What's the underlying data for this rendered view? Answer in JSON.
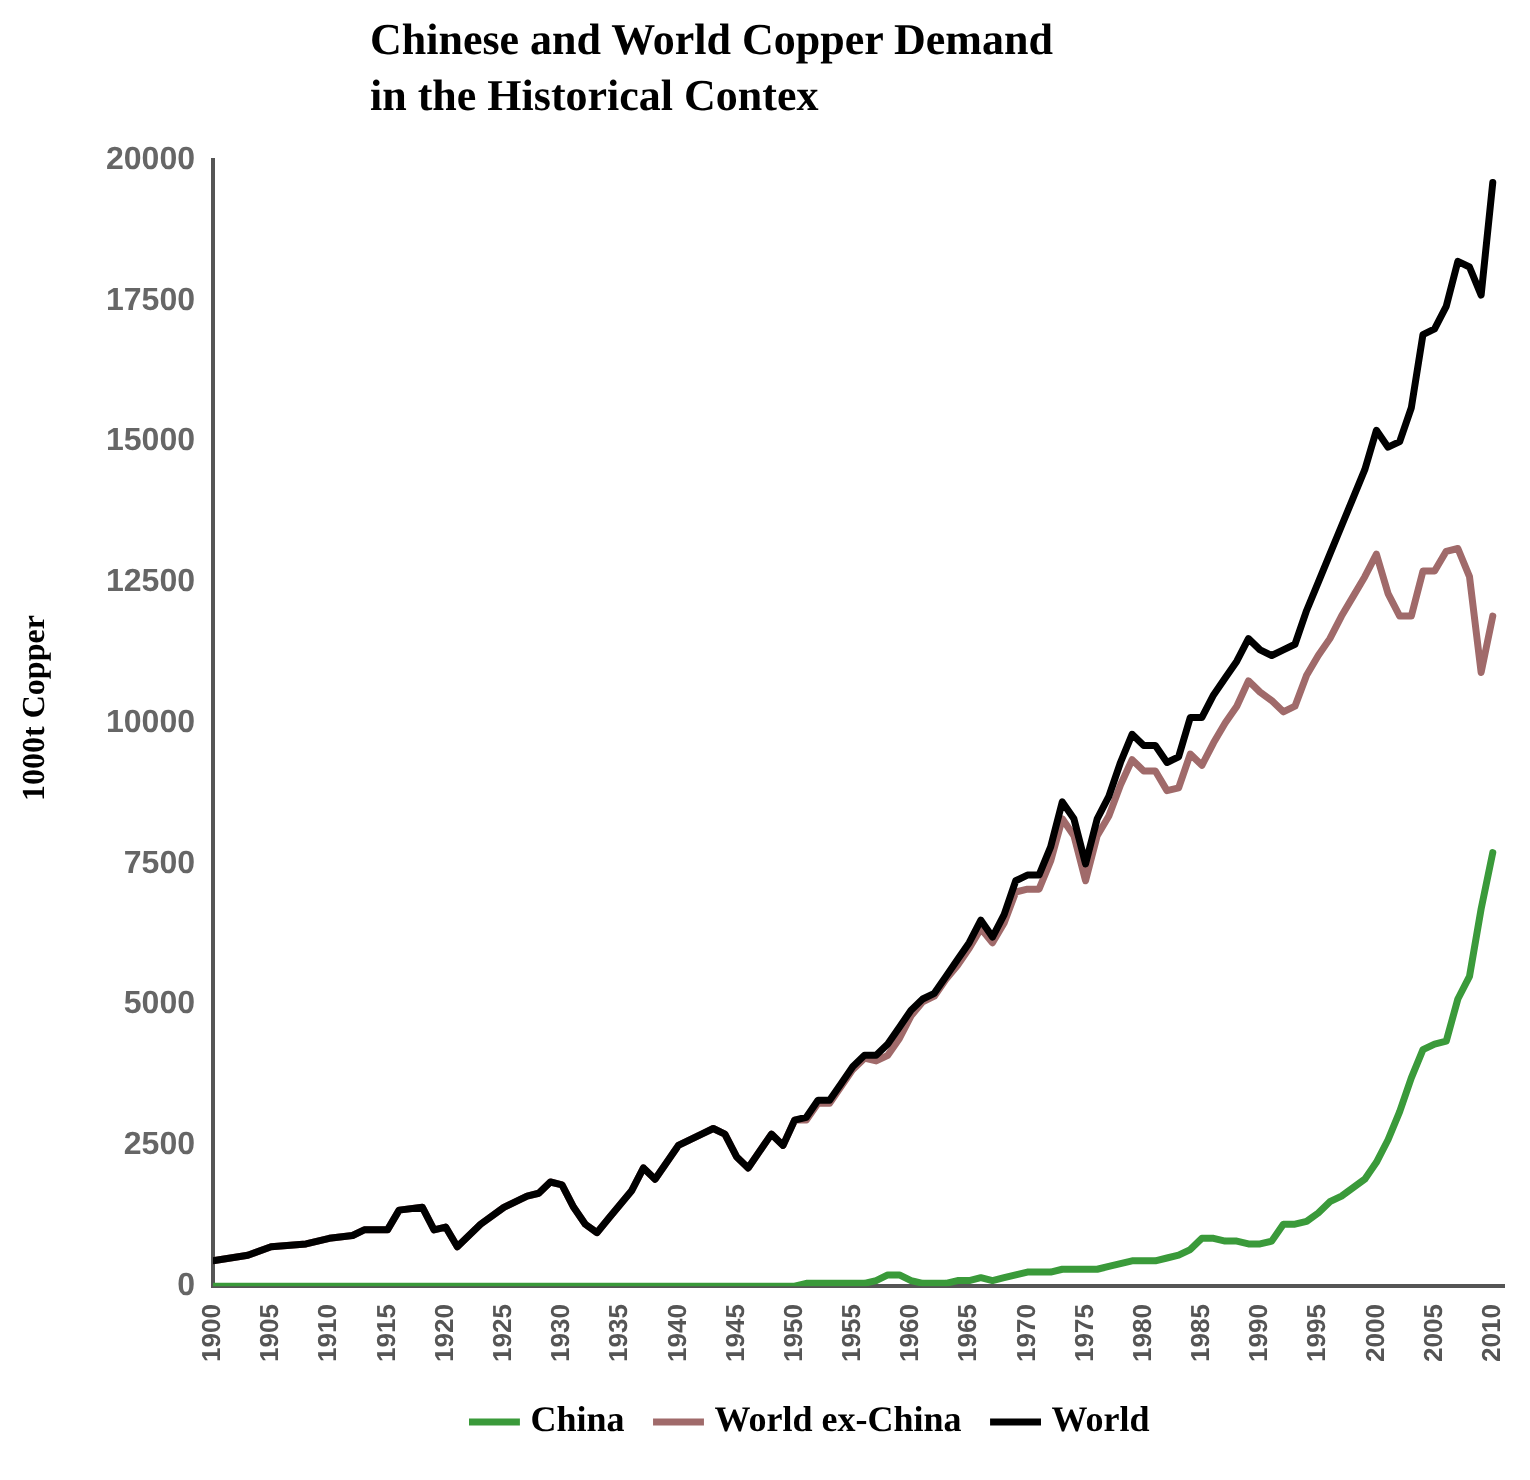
{
  "chart_data": {
    "type": "line",
    "title": "Chinese and World Copper Demand\nin the Historical Contex",
    "ylabel": "1000t Copper",
    "x": [
      1900,
      1903,
      1905,
      1908,
      1910,
      1912,
      1913,
      1915,
      1916,
      1918,
      1919,
      1920,
      1921,
      1923,
      1925,
      1927,
      1928,
      1929,
      1930,
      1931,
      1932,
      1933,
      1934,
      1936,
      1937,
      1938,
      1940,
      1942,
      1943,
      1944,
      1945,
      1946,
      1948,
      1949,
      1950,
      1951,
      1952,
      1953,
      1954,
      1955,
      1956,
      1957,
      1958,
      1959,
      1960,
      1961,
      1962,
      1963,
      1964,
      1965,
      1966,
      1967,
      1968,
      1969,
      1970,
      1971,
      1972,
      1973,
      1974,
      1975,
      1976,
      1977,
      1978,
      1979,
      1980,
      1981,
      1982,
      1983,
      1984,
      1985,
      1986,
      1987,
      1988,
      1989,
      1990,
      1991,
      1992,
      1993,
      1994,
      1995,
      1996,
      1997,
      1998,
      1999,
      2000,
      2001,
      2002,
      2003,
      2004,
      2005,
      2006,
      2007,
      2008,
      2009,
      2010
    ],
    "series": [
      {
        "name": "China",
        "color": "#3a9a3a",
        "values": [
          0,
          0,
          0,
          0,
          0,
          0,
          0,
          0,
          0,
          0,
          0,
          0,
          0,
          0,
          0,
          0,
          0,
          0,
          0,
          0,
          0,
          0,
          0,
          0,
          0,
          0,
          0,
          0,
          0,
          0,
          0,
          0,
          0,
          0,
          0,
          50,
          50,
          50,
          50,
          50,
          50,
          100,
          200,
          200,
          100,
          50,
          50,
          50,
          100,
          100,
          150,
          100,
          150,
          200,
          250,
          250,
          250,
          300,
          300,
          300,
          300,
          350,
          400,
          450,
          450,
          450,
          500,
          550,
          650,
          850,
          850,
          800,
          800,
          750,
          750,
          800,
          1100,
          1100,
          1150,
          1300,
          1500,
          1600,
          1750,
          1900,
          2200,
          2600,
          3100,
          3700,
          4200,
          4300,
          4350,
          5100,
          5500,
          6700,
          7700
        ]
      },
      {
        "name": "World ex-China",
        "color": "#a06a6a",
        "values": [
          450,
          550,
          700,
          750,
          850,
          900,
          1000,
          1000,
          1350,
          1400,
          1000,
          1050,
          700,
          1100,
          1400,
          1600,
          1650,
          1850,
          1800,
          1400,
          1100,
          950,
          1200,
          1700,
          2100,
          1900,
          2500,
          2700,
          2800,
          2700,
          2300,
          2100,
          2700,
          2500,
          2950,
          2950,
          3250,
          3250,
          3550,
          3850,
          4050,
          4000,
          4100,
          4400,
          4800,
          5050,
          5150,
          5450,
          5700,
          6000,
          6350,
          6100,
          6450,
          7000,
          7050,
          7050,
          7550,
          8300,
          8000,
          7200,
          8000,
          8350,
          8900,
          9350,
          9150,
          9150,
          8800,
          8850,
          9450,
          9250,
          9650,
          10000,
          10300,
          10750,
          10550,
          10400,
          10200,
          10300,
          10850,
          11200,
          11500,
          11900,
          12250,
          12600,
          13000,
          12300,
          11900,
          11900,
          12700,
          12700,
          13050,
          13100,
          12600,
          10900,
          11900
        ]
      },
      {
        "name": "World",
        "color": "#000000",
        "values": [
          450,
          550,
          700,
          750,
          850,
          900,
          1000,
          1000,
          1350,
          1400,
          1000,
          1050,
          700,
          1100,
          1400,
          1600,
          1650,
          1850,
          1800,
          1400,
          1100,
          950,
          1200,
          1700,
          2100,
          1900,
          2500,
          2700,
          2800,
          2700,
          2300,
          2100,
          2700,
          2500,
          2950,
          3000,
          3300,
          3300,
          3600,
          3900,
          4100,
          4100,
          4300,
          4600,
          4900,
          5100,
          5200,
          5500,
          5800,
          6100,
          6500,
          6200,
          6600,
          7200,
          7300,
          7300,
          7800,
          8600,
          8300,
          7500,
          8300,
          8700,
          9300,
          9800,
          9600,
          9600,
          9300,
          9400,
          10100,
          10100,
          10500,
          10800,
          11100,
          11500,
          11300,
          11200,
          11300,
          11400,
          12000,
          12500,
          13000,
          13500,
          14000,
          14500,
          15200,
          14900,
          15000,
          15600,
          16900,
          17000,
          17400,
          18200,
          18100,
          17600,
          19600
        ]
      }
    ],
    "xlim": [
      1900,
      2011
    ],
    "xticks": [
      1900,
      1905,
      1910,
      1915,
      1920,
      1925,
      1930,
      1935,
      1940,
      1945,
      1950,
      1955,
      1960,
      1965,
      1970,
      1975,
      1980,
      1985,
      1990,
      1995,
      2000,
      2005,
      2010
    ],
    "ylim": [
      0,
      20000
    ],
    "yticks": [
      0,
      2500,
      5000,
      7500,
      10000,
      12500,
      15000,
      17500,
      20000
    ],
    "legend": "bottom",
    "line_style": "solid"
  }
}
